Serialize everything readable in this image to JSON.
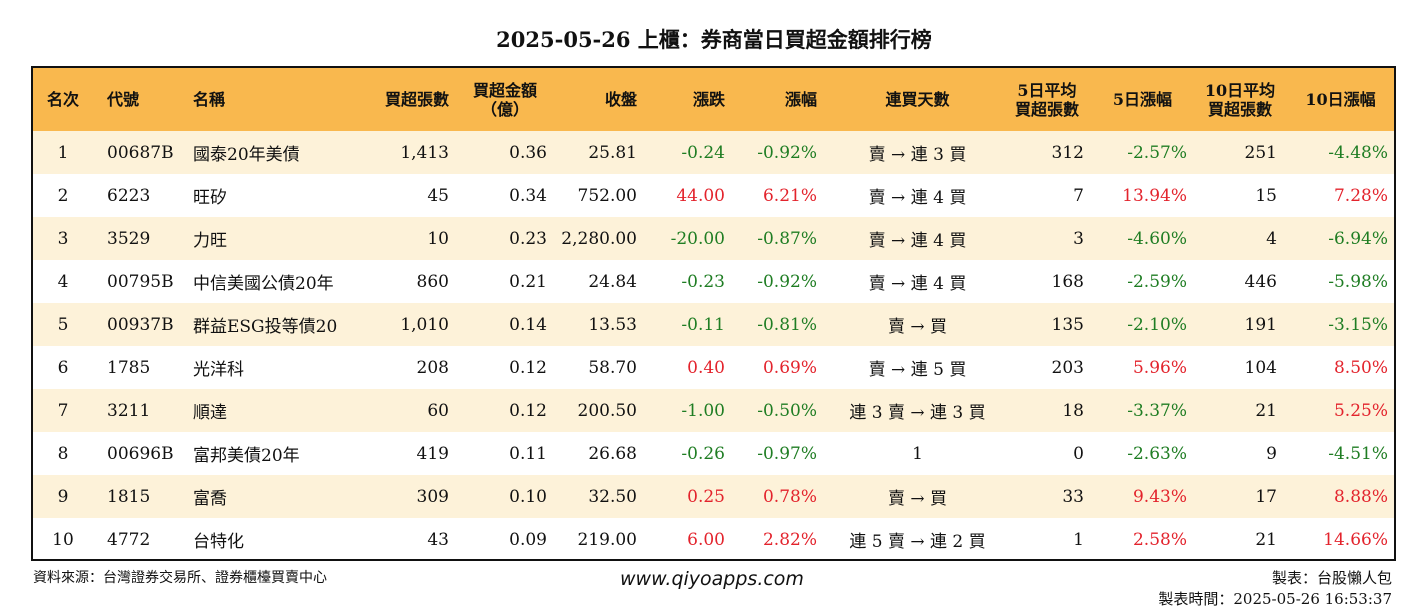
{
  "title": "2025-05-26 上櫃：券商當日買超金額排行榜",
  "headers": [
    {
      "line1": "名次",
      "line2": ""
    },
    {
      "line1": "代號",
      "line2": ""
    },
    {
      "line1": "名稱",
      "line2": ""
    },
    {
      "line1": "買超張數",
      "line2": ""
    },
    {
      "line1": "買超金額",
      "line2": "（億）"
    },
    {
      "line1": "收盤",
      "line2": ""
    },
    {
      "line1": "漲跌",
      "line2": ""
    },
    {
      "line1": "漲幅",
      "line2": ""
    },
    {
      "line1": "連買天數",
      "line2": ""
    },
    {
      "line1": "5日平均",
      "line2": "買超張數"
    },
    {
      "line1": "5日漲幅",
      "line2": ""
    },
    {
      "line1": "10日平均",
      "line2": "買超張數"
    },
    {
      "line1": "10日漲幅",
      "line2": ""
    }
  ],
  "rows": [
    {
      "rank": "1",
      "code": "00687B",
      "name": "國泰20年美債",
      "lots": "1,413",
      "amount": "0.36",
      "close": "25.81",
      "change": "-0.24",
      "pct": "-0.92%",
      "streak": "賣 → 連 3 買",
      "avg5": "312",
      "pct5": "-2.57%",
      "avg10": "251",
      "pct10": "-4.48%"
    },
    {
      "rank": "2",
      "code": "6223",
      "name": "旺矽",
      "lots": "45",
      "amount": "0.34",
      "close": "752.00",
      "change": "44.00",
      "pct": "6.21%",
      "streak": "賣 → 連 4 買",
      "avg5": "7",
      "pct5": "13.94%",
      "avg10": "15",
      "pct10": "7.28%"
    },
    {
      "rank": "3",
      "code": "3529",
      "name": "力旺",
      "lots": "10",
      "amount": "0.23",
      "close": "2,280.00",
      "change": "-20.00",
      "pct": "-0.87%",
      "streak": "賣 → 連 4 買",
      "avg5": "3",
      "pct5": "-4.60%",
      "avg10": "4",
      "pct10": "-6.94%"
    },
    {
      "rank": "4",
      "code": "00795B",
      "name": "中信美國公債20年",
      "lots": "860",
      "amount": "0.21",
      "close": "24.84",
      "change": "-0.23",
      "pct": "-0.92%",
      "streak": "賣 → 連 4 買",
      "avg5": "168",
      "pct5": "-2.59%",
      "avg10": "446",
      "pct10": "-5.98%"
    },
    {
      "rank": "5",
      "code": "00937B",
      "name": "群益ESG投等債20",
      "lots": "1,010",
      "amount": "0.14",
      "close": "13.53",
      "change": "-0.11",
      "pct": "-0.81%",
      "streak": "賣 → 買",
      "avg5": "135",
      "pct5": "-2.10%",
      "avg10": "191",
      "pct10": "-3.15%"
    },
    {
      "rank": "6",
      "code": "1785",
      "name": "光洋科",
      "lots": "208",
      "amount": "0.12",
      "close": "58.70",
      "change": "0.40",
      "pct": "0.69%",
      "streak": "賣 → 連 5 買",
      "avg5": "203",
      "pct5": "5.96%",
      "avg10": "104",
      "pct10": "8.50%"
    },
    {
      "rank": "7",
      "code": "3211",
      "name": "順達",
      "lots": "60",
      "amount": "0.12",
      "close": "200.50",
      "change": "-1.00",
      "pct": "-0.50%",
      "streak": "連 3 賣 → 連 3 買",
      "avg5": "18",
      "pct5": "-3.37%",
      "avg10": "21",
      "pct10": "5.25%"
    },
    {
      "rank": "8",
      "code": "00696B",
      "name": "富邦美債20年",
      "lots": "419",
      "amount": "0.11",
      "close": "26.68",
      "change": "-0.26",
      "pct": "-0.97%",
      "streak": "1",
      "avg5": "0",
      "pct5": "-2.63%",
      "avg10": "9",
      "pct10": "-4.51%"
    },
    {
      "rank": "9",
      "code": "1815",
      "name": "富喬",
      "lots": "309",
      "amount": "0.10",
      "close": "32.50",
      "change": "0.25",
      "pct": "0.78%",
      "streak": "賣 → 買",
      "avg5": "33",
      "pct5": "9.43%",
      "avg10": "17",
      "pct10": "8.88%"
    },
    {
      "rank": "10",
      "code": "4772",
      "name": "台特化",
      "lots": "43",
      "amount": "0.09",
      "close": "219.00",
      "change": "6.00",
      "pct": "2.82%",
      "streak": "連 5 賣 → 連 2 買",
      "avg5": "1",
      "pct5": "2.58%",
      "avg10": "21",
      "pct10": "14.66%"
    }
  ],
  "footer": {
    "source": "資料來源：台灣證券交易所、證券櫃檯買賣中心",
    "website": "www.qiyoapps.com",
    "maker": "製表：台股懶人包",
    "made_time": "製表時間：2025-05-26 16:53:37"
  },
  "colors": {
    "header_bg": "#f9b84e",
    "row_alt_bg": "#fdf2d9",
    "up": "#e3232c",
    "down": "#1f7d23"
  }
}
